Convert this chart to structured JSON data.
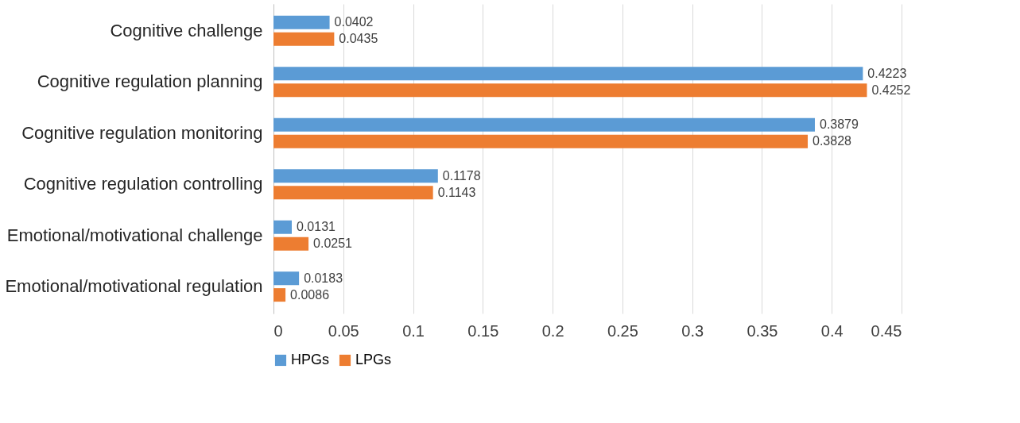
{
  "chart_data": {
    "type": "bar",
    "orientation": "horizontal",
    "categories": [
      "Cognitive challenge",
      "Cognitive regulation planning",
      "Cognitive regulation monitoring",
      "Cognitive regulation controlling",
      "Emotional/motivational challenge",
      "Emotional/motivational regulation"
    ],
    "series": [
      {
        "name": "HPGs",
        "color": "#5b9bd5",
        "values": [
          0.0402,
          0.4223,
          0.3879,
          0.1178,
          0.0131,
          0.0183
        ]
      },
      {
        "name": "LPGs",
        "color": "#ed7d31",
        "values": [
          0.0435,
          0.4252,
          0.3828,
          0.1143,
          0.0251,
          0.0086
        ]
      }
    ],
    "xlim": [
      0,
      0.45
    ],
    "xticks": [
      0,
      0.05,
      0.1,
      0.15,
      0.2,
      0.25,
      0.3,
      0.35,
      0.4,
      0.45
    ],
    "grid": "x",
    "legend": "bottom",
    "data_labels": true
  }
}
